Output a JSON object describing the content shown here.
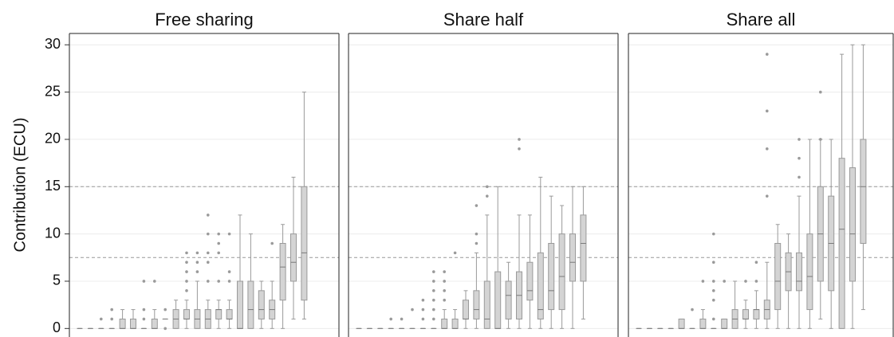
{
  "chart_data": [
    {
      "type": "box",
      "title": "Free sharing",
      "ylabel": "Contribution (ECU)",
      "ylim": [
        -0.9,
        31.2
      ],
      "yticks": [
        0,
        5,
        10,
        15,
        20,
        25,
        30
      ],
      "hlines": [
        7.5,
        15
      ],
      "grid": true,
      "boxes": [
        {
          "min": 0,
          "q1": 0,
          "median": 0,
          "q3": 0,
          "max": 0,
          "outliers": []
        },
        {
          "min": 0,
          "q1": 0,
          "median": 0,
          "q3": 0,
          "max": 0,
          "outliers": []
        },
        {
          "min": 0,
          "q1": 0,
          "median": 0,
          "q3": 0,
          "max": 0,
          "outliers": [
            1
          ]
        },
        {
          "min": 0,
          "q1": 0,
          "median": 0,
          "q3": 0,
          "max": 0,
          "outliers": [
            1,
            2
          ]
        },
        {
          "min": 0,
          "q1": 0,
          "median": 0,
          "q3": 1,
          "max": 2,
          "outliers": []
        },
        {
          "min": 0,
          "q1": 0,
          "median": 0,
          "q3": 1,
          "max": 2,
          "outliers": []
        },
        {
          "min": 0,
          "q1": 0,
          "median": 0,
          "q3": 0,
          "max": 0,
          "outliers": [
            1,
            2,
            5
          ]
        },
        {
          "min": 0,
          "q1": 0,
          "median": 0,
          "q3": 1,
          "max": 2,
          "outliers": [
            5
          ]
        },
        {
          "min": 1,
          "q1": 1,
          "median": 1,
          "q3": 1,
          "max": 1,
          "outliers": [
            0,
            2
          ]
        },
        {
          "min": 0,
          "q1": 0,
          "median": 1,
          "q3": 2,
          "max": 3,
          "outliers": []
        },
        {
          "min": 0,
          "q1": 1,
          "median": 1,
          "q3": 2,
          "max": 3,
          "outliers": [
            4,
            5,
            6,
            7,
            8
          ]
        },
        {
          "min": 0,
          "q1": 0,
          "median": 1,
          "q3": 2,
          "max": 5,
          "outliers": [
            6,
            7,
            8
          ]
        },
        {
          "min": 0,
          "q1": 0,
          "median": 1,
          "q3": 2,
          "max": 3,
          "outliers": [
            5,
            7,
            8,
            10,
            12
          ]
        },
        {
          "min": 0,
          "q1": 1,
          "median": 2,
          "q3": 2,
          "max": 3,
          "outliers": [
            5,
            8,
            9,
            10
          ]
        },
        {
          "min": 0,
          "q1": 1,
          "median": 1,
          "q3": 2,
          "max": 3,
          "outliers": [
            5,
            6,
            10
          ]
        },
        {
          "min": 0,
          "q1": 0,
          "median": 0,
          "q3": 5,
          "max": 12,
          "outliers": []
        },
        {
          "min": 0,
          "q1": 0,
          "median": 2,
          "q3": 5,
          "max": 10,
          "outliers": []
        },
        {
          "min": 0,
          "q1": 1,
          "median": 2,
          "q3": 4,
          "max": 5,
          "outliers": []
        },
        {
          "min": 0,
          "q1": 1,
          "median": 2,
          "q3": 3,
          "max": 5,
          "outliers": [
            9
          ]
        },
        {
          "min": 0,
          "q1": 3,
          "median": 6.5,
          "q3": 9,
          "max": 11,
          "outliers": []
        },
        {
          "min": 1,
          "q1": 5,
          "median": 7,
          "q3": 10,
          "max": 16,
          "outliers": []
        },
        {
          "min": 1,
          "q1": 3,
          "median": 8,
          "q3": 15,
          "max": 25,
          "outliers": []
        }
      ]
    },
    {
      "type": "box",
      "title": "Share half",
      "ylim": [
        -0.9,
        31.2
      ],
      "hlines": [
        7.5,
        15
      ],
      "boxes": [
        {
          "min": 0,
          "q1": 0,
          "median": 0,
          "q3": 0,
          "max": 0,
          "outliers": []
        },
        {
          "min": 0,
          "q1": 0,
          "median": 0,
          "q3": 0,
          "max": 0,
          "outliers": []
        },
        {
          "min": 0,
          "q1": 0,
          "median": 0,
          "q3": 0,
          "max": 0,
          "outliers": []
        },
        {
          "min": 0,
          "q1": 0,
          "median": 0,
          "q3": 0,
          "max": 0,
          "outliers": [
            1
          ]
        },
        {
          "min": 0,
          "q1": 0,
          "median": 0,
          "q3": 0,
          "max": 0,
          "outliers": [
            1
          ]
        },
        {
          "min": 0,
          "q1": 0,
          "median": 0,
          "q3": 0,
          "max": 0,
          "outliers": [
            2
          ]
        },
        {
          "min": 0,
          "q1": 0,
          "median": 0,
          "q3": 0,
          "max": 0,
          "outliers": [
            1,
            2,
            3
          ]
        },
        {
          "min": 0,
          "q1": 0,
          "median": 0,
          "q3": 0,
          "max": 0,
          "outliers": [
            1,
            2,
            3,
            4,
            5,
            6
          ]
        },
        {
          "min": 0,
          "q1": 0,
          "median": 0,
          "q3": 1,
          "max": 2,
          "outliers": [
            3,
            4,
            5,
            6
          ]
        },
        {
          "min": 0,
          "q1": 0,
          "median": 0,
          "q3": 1,
          "max": 2,
          "outliers": [
            8
          ]
        },
        {
          "min": 0,
          "q1": 1,
          "median": 1,
          "q3": 3,
          "max": 4,
          "outliers": []
        },
        {
          "min": 0,
          "q1": 1,
          "median": 2,
          "q3": 4,
          "max": 8,
          "outliers": [
            9,
            10,
            13
          ]
        },
        {
          "min": 0,
          "q1": 0,
          "median": 1,
          "q3": 5,
          "max": 12,
          "outliers": [
            14,
            15
          ]
        },
        {
          "min": 0,
          "q1": 0,
          "median": 0,
          "q3": 6,
          "max": 15,
          "outliers": []
        },
        {
          "min": 0,
          "q1": 1,
          "median": 3.5,
          "q3": 5,
          "max": 7,
          "outliers": []
        },
        {
          "min": 0,
          "q1": 1,
          "median": 3.5,
          "q3": 6,
          "max": 12,
          "outliers": [
            19,
            20
          ]
        },
        {
          "min": 0,
          "q1": 3,
          "median": 4,
          "q3": 7,
          "max": 12,
          "outliers": []
        },
        {
          "min": 0,
          "q1": 1,
          "median": 2,
          "q3": 8,
          "max": 16,
          "outliers": []
        },
        {
          "min": 0,
          "q1": 2,
          "median": 4,
          "q3": 9,
          "max": 14,
          "outliers": []
        },
        {
          "min": 0,
          "q1": 2,
          "median": 5.5,
          "q3": 10,
          "max": 13,
          "outliers": []
        },
        {
          "min": 0,
          "q1": 5,
          "median": 7,
          "q3": 10,
          "max": 15,
          "outliers": []
        },
        {
          "min": 1,
          "q1": 5,
          "median": 9,
          "q3": 12,
          "max": 15,
          "outliers": []
        }
      ]
    },
    {
      "type": "box",
      "title": "Share all",
      "ylim": [
        -0.9,
        31.2
      ],
      "hlines": [
        7.5,
        15
      ],
      "boxes": [
        {
          "min": 0,
          "q1": 0,
          "median": 0,
          "q3": 0,
          "max": 0,
          "outliers": []
        },
        {
          "min": 0,
          "q1": 0,
          "median": 0,
          "q3": 0,
          "max": 0,
          "outliers": []
        },
        {
          "min": 0,
          "q1": 0,
          "median": 0,
          "q3": 0,
          "max": 0,
          "outliers": []
        },
        {
          "min": 0,
          "q1": 0,
          "median": 0,
          "q3": 0,
          "max": 0,
          "outliers": []
        },
        {
          "min": 0,
          "q1": 0,
          "median": 0,
          "q3": 1,
          "max": 1,
          "outliers": []
        },
        {
          "min": 0,
          "q1": 0,
          "median": 0,
          "q3": 0,
          "max": 0,
          "outliers": [
            2
          ]
        },
        {
          "min": 0,
          "q1": 0,
          "median": 0,
          "q3": 1,
          "max": 2,
          "outliers": [
            5
          ]
        },
        {
          "min": 0,
          "q1": 0,
          "median": 0,
          "q3": 0,
          "max": 0,
          "outliers": [
            1,
            3,
            4,
            5,
            7,
            10
          ]
        },
        {
          "min": 0,
          "q1": 0,
          "median": 0,
          "q3": 1,
          "max": 1,
          "outliers": [
            5
          ]
        },
        {
          "min": 0,
          "q1": 0,
          "median": 1,
          "q3": 2,
          "max": 5,
          "outliers": []
        },
        {
          "min": 0,
          "q1": 1,
          "median": 1,
          "q3": 2,
          "max": 3,
          "outliers": [
            5
          ]
        },
        {
          "min": 0,
          "q1": 1,
          "median": 2,
          "q3": 2,
          "max": 4,
          "outliers": [
            5,
            7
          ]
        },
        {
          "min": 0,
          "q1": 1,
          "median": 2,
          "q3": 3,
          "max": 7,
          "outliers": [
            14,
            19,
            23,
            29
          ]
        },
        {
          "min": 0,
          "q1": 2,
          "median": 5,
          "q3": 9,
          "max": 11,
          "outliers": []
        },
        {
          "min": 0,
          "q1": 4,
          "median": 6,
          "q3": 8,
          "max": 10,
          "outliers": []
        },
        {
          "min": 0,
          "q1": 4,
          "median": 5,
          "q3": 8,
          "max": 14,
          "outliers": [
            16,
            18,
            20
          ]
        },
        {
          "min": 0,
          "q1": 2,
          "median": 5.5,
          "q3": 10,
          "max": 20,
          "outliers": []
        },
        {
          "min": 1,
          "q1": 5,
          "median": 10,
          "q3": 15,
          "max": 20,
          "outliers": [
            20,
            25
          ]
        },
        {
          "min": 0,
          "q1": 4,
          "median": 9,
          "q3": 14,
          "max": 20,
          "outliers": []
        },
        {
          "min": 0,
          "q1": 0,
          "median": 10.5,
          "q3": 18,
          "max": 29,
          "outliers": []
        },
        {
          "min": 0,
          "q1": 5,
          "median": 10,
          "q3": 17,
          "max": 30,
          "outliers": []
        },
        {
          "min": 2,
          "q1": 9,
          "median": 15,
          "q3": 20,
          "max": 30,
          "outliers": []
        }
      ]
    }
  ]
}
